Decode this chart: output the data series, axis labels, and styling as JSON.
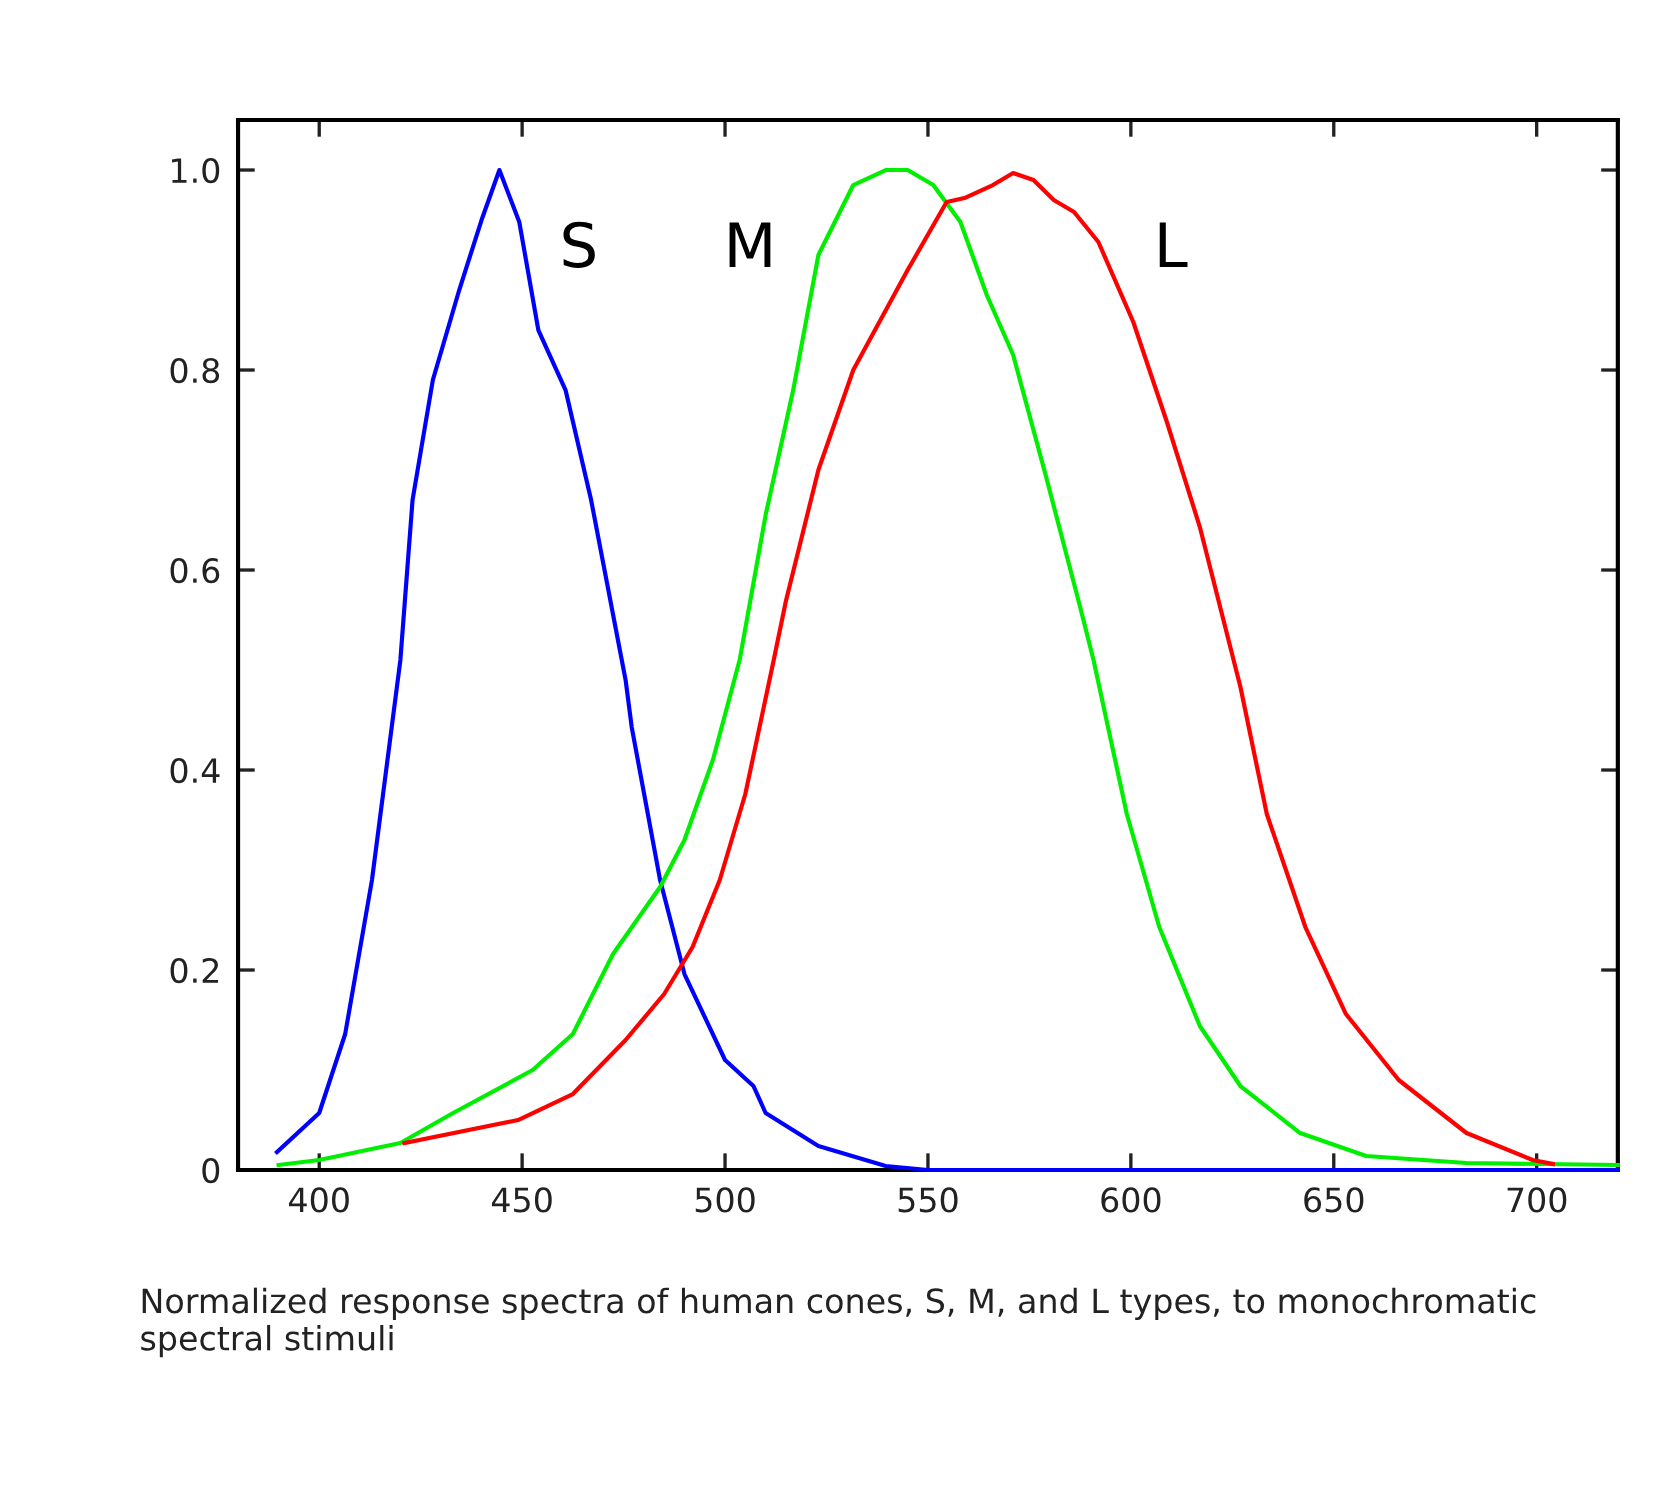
{
  "chart_data": {
    "type": "line",
    "xlim": [
      380,
      720
    ],
    "ylim": [
      0,
      1.05
    ],
    "xticks": [
      400,
      450,
      500,
      550,
      600,
      650,
      700
    ],
    "yticks": [
      {
        "value": 0,
        "label": "0"
      },
      0.2,
      0.4,
      0.6,
      0.8,
      {
        "value": 1,
        "label": "1.0"
      }
    ],
    "grid": false,
    "legend": false,
    "marker": "none",
    "line_style": "solid",
    "series": [
      {
        "name": "S",
        "color": "#0000ff",
        "x": [
          389.6,
          400,
          406.4,
          413,
          420,
          423,
          428,
          434.5,
          440,
          444.4,
          449.3,
          454,
          460.7,
          467,
          475.5,
          477,
          484,
          490,
          500,
          507,
          510,
          523,
          539.6,
          550,
          600,
          650,
          720
        ],
        "values": [
          0.018,
          0.057,
          0.136,
          0.29,
          0.51,
          0.67,
          0.79,
          0.88,
          0.95,
          1.0,
          0.948,
          0.84,
          0.78,
          0.67,
          0.49,
          0.443,
          0.29,
          0.196,
          0.11,
          0.084,
          0.057,
          0.024,
          0.004,
          0,
          0,
          0,
          0
        ]
      },
      {
        "name": "M",
        "color": "#00ee00",
        "x": [
          390,
          400,
          420,
          433,
          452.6,
          462.5,
          472.4,
          484,
          490,
          497,
          503.6,
          510,
          516.8,
          523,
          531.6,
          539.6,
          545,
          551.3,
          558,
          564.5,
          571,
          579,
          587.5,
          590.8,
          599,
          607,
          617,
          627,
          641.7,
          658,
          682.7,
          720
        ],
        "values": [
          0.005,
          0.01,
          0.027,
          0.057,
          0.1,
          0.136,
          0.216,
          0.283,
          0.33,
          0.41,
          0.51,
          0.655,
          0.78,
          0.915,
          0.985,
          1.0,
          1.0,
          0.985,
          0.948,
          0.875,
          0.815,
          0.695,
          0.563,
          0.51,
          0.356,
          0.243,
          0.144,
          0.084,
          0.037,
          0.014,
          0.007,
          0.005
        ]
      },
      {
        "name": "L",
        "color": "#ff0000",
        "x": [
          421,
          449,
          462.5,
          475.5,
          485,
          492,
          498.7,
          505,
          512,
          515,
          523,
          531.6,
          545,
          554.6,
          559,
          566,
          571,
          576,
          581,
          586,
          592,
          600.6,
          608.8,
          617,
          627,
          633.5,
          643,
          653,
          666,
          682.7,
          699,
          704
        ],
        "values": [
          0.027,
          0.05,
          0.076,
          0.13,
          0.176,
          0.223,
          0.29,
          0.376,
          0.51,
          0.569,
          0.7,
          0.8,
          0.9,
          0.968,
          0.972,
          0.985,
          0.997,
          0.99,
          0.97,
          0.958,
          0.928,
          0.848,
          0.749,
          0.643,
          0.483,
          0.356,
          0.243,
          0.156,
          0.09,
          0.037,
          0.01,
          0.006
        ]
      }
    ],
    "annotations": [
      "Normalized response spectra of human cones, S, M, and L types, to monochromatic spectral stimuli"
    ]
  }
}
